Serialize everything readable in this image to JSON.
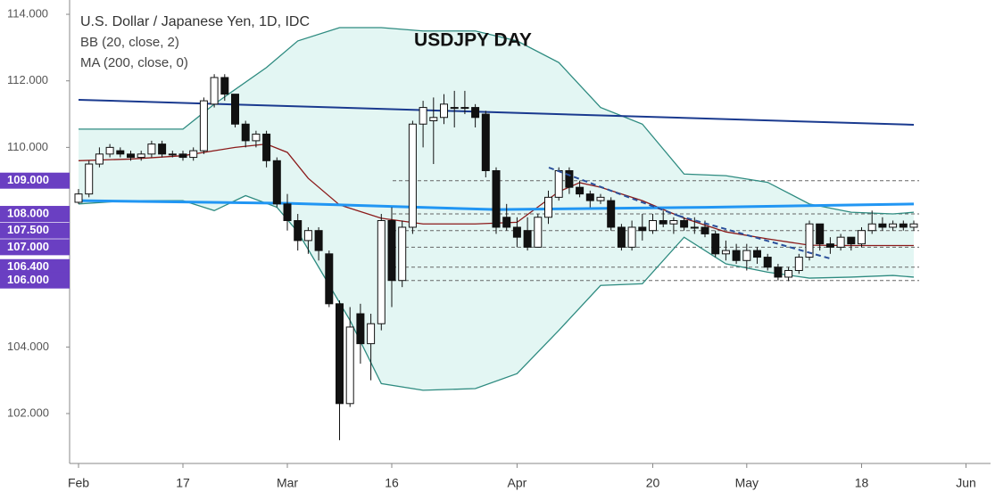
{
  "chart_data": {
    "type": "candlestick",
    "title": "USDJPY DAY",
    "legend_lines": [
      "U.S. Dollar / Japanese Yen, 1D, IDC",
      "BB (20, close, 2)",
      "MA (200, close, 0)"
    ],
    "open": [
      108.35,
      108.6,
      109.5,
      109.8,
      109.9,
      109.8,
      109.7,
      109.8,
      110.1,
      109.8,
      109.8,
      109.7,
      109.9,
      111.3,
      112.1,
      111.6,
      110.7,
      110.2,
      110.4,
      109.6,
      108.3,
      107.8,
      107.2,
      107.5,
      106.8,
      105.3,
      102.3,
      105.0,
      104.1,
      104.7,
      107.8,
      106.0,
      107.6,
      110.7,
      110.8,
      110.9,
      111.2,
      111.2,
      111.2,
      111.0,
      109.3,
      107.9,
      107.6,
      107.5,
      107.0,
      107.9,
      108.5,
      109.3,
      108.8,
      108.6,
      108.4,
      108.4,
      107.6,
      107.0,
      107.6,
      107.5,
      107.8,
      107.7,
      107.8,
      107.6,
      107.6,
      107.4,
      106.8,
      106.9,
      106.6,
      106.9,
      106.7,
      106.4,
      106.1,
      106.3,
      106.7,
      107.7,
      107.1,
      107.0,
      107.3,
      107.1,
      107.5,
      107.7,
      107.6,
      107.7,
      107.6
    ],
    "high": [
      108.75,
      109.6,
      110.0,
      110.1,
      110.0,
      109.9,
      109.9,
      110.2,
      110.2,
      109.9,
      109.9,
      110.0,
      111.5,
      112.2,
      112.2,
      111.6,
      110.8,
      110.5,
      110.5,
      109.7,
      108.6,
      108.0,
      107.6,
      107.6,
      106.9,
      105.4,
      105.2,
      105.3,
      105.0,
      108.0,
      108.2,
      107.8,
      110.8,
      111.4,
      111.5,
      111.6,
      111.7,
      111.7,
      111.3,
      111.1,
      109.4,
      108.3,
      107.9,
      107.9,
      108.0,
      108.7,
      109.4,
      109.4,
      109.0,
      108.7,
      108.6,
      108.5,
      107.7,
      107.8,
      108.0,
      108.0,
      108.1,
      107.9,
      107.9,
      107.9,
      107.8,
      107.5,
      107.2,
      107.1,
      107.1,
      107.0,
      106.8,
      106.5,
      106.4,
      106.8,
      107.8,
      107.7,
      107.3,
      107.4,
      107.3,
      107.6,
      108.1,
      107.9,
      107.8,
      107.8,
      107.8
    ],
    "low": [
      108.3,
      108.5,
      109.4,
      109.7,
      109.7,
      109.6,
      109.6,
      109.7,
      109.7,
      109.7,
      109.6,
      109.6,
      109.8,
      111.2,
      111.4,
      110.6,
      110.0,
      110.0,
      109.4,
      108.2,
      107.5,
      106.9,
      106.8,
      106.6,
      105.2,
      101.2,
      102.2,
      103.5,
      103.0,
      104.5,
      105.2,
      105.8,
      107.4,
      110.0,
      109.5,
      110.7,
      110.6,
      111.0,
      110.6,
      109.1,
      107.4,
      107.5,
      107.0,
      106.9,
      107.0,
      107.7,
      108.4,
      108.6,
      108.5,
      108.2,
      108.3,
      107.5,
      106.9,
      106.9,
      107.2,
      107.4,
      107.6,
      107.4,
      107.5,
      107.4,
      107.3,
      106.7,
      106.6,
      106.5,
      106.3,
      106.5,
      106.3,
      106.0,
      105.98,
      106.2,
      106.6,
      106.9,
      106.8,
      106.9,
      106.9,
      107.0,
      107.4,
      107.5,
      107.5,
      107.5,
      107.5
    ],
    "close": [
      108.6,
      109.5,
      109.8,
      110.0,
      109.8,
      109.7,
      109.8,
      110.1,
      109.8,
      109.8,
      109.7,
      109.9,
      111.4,
      112.1,
      111.6,
      110.7,
      110.2,
      110.4,
      109.6,
      108.3,
      107.8,
      107.2,
      107.5,
      106.9,
      105.3,
      102.3,
      104.6,
      104.1,
      104.7,
      107.8,
      106.0,
      107.6,
      110.7,
      111.2,
      110.9,
      111.3,
      111.2,
      111.2,
      110.9,
      109.3,
      107.6,
      107.6,
      107.3,
      107.0,
      107.9,
      108.5,
      109.3,
      108.8,
      108.6,
      108.4,
      108.5,
      107.6,
      107.0,
      107.6,
      107.5,
      107.8,
      107.7,
      107.8,
      107.6,
      107.6,
      107.4,
      106.8,
      106.9,
      106.6,
      106.9,
      106.7,
      106.4,
      106.1,
      106.3,
      106.7,
      107.7,
      107.1,
      107.0,
      107.3,
      107.1,
      107.5,
      107.7,
      107.6,
      107.7,
      107.6,
      107.7
    ],
    "series": [
      {
        "name": "BB upper",
        "color": "#2e8b80",
        "x": [
          0,
          5,
          10,
          13,
          18,
          21,
          25,
          29,
          33,
          38,
          42,
          46,
          50,
          54,
          58,
          62,
          66,
          70,
          74,
          78,
          80
        ],
        "values": [
          110.55,
          110.55,
          110.55,
          111.3,
          112.4,
          113.2,
          113.6,
          113.6,
          113.5,
          113.5,
          113.2,
          112.55,
          111.2,
          110.7,
          109.2,
          109.15,
          108.95,
          108.3,
          108.05,
          108.0,
          108.05
        ]
      },
      {
        "name": "BB lower",
        "color": "#2e8b80",
        "x": [
          0,
          5,
          10,
          13,
          16,
          19,
          21,
          23,
          26,
          29,
          33,
          38,
          42,
          46,
          50,
          54,
          58,
          62,
          66,
          70,
          74,
          78,
          80
        ],
        "values": [
          108.3,
          108.4,
          108.4,
          108.1,
          108.55,
          108.2,
          107.46,
          106.4,
          104.8,
          102.9,
          102.7,
          102.75,
          103.2,
          104.5,
          105.85,
          105.9,
          107.3,
          106.5,
          106.25,
          106.07,
          106.1,
          106.15,
          106.1
        ]
      },
      {
        "name": "BB basis",
        "color": "#8b1a1a",
        "x": [
          0,
          5,
          10,
          15,
          18,
          20,
          22,
          25,
          29,
          33,
          38,
          42,
          46,
          48,
          50,
          54,
          58,
          62,
          66,
          70,
          74,
          80
        ],
        "values": [
          109.6,
          109.65,
          109.75,
          110.0,
          110.1,
          109.85,
          109.07,
          108.27,
          107.87,
          107.7,
          107.7,
          107.75,
          108.67,
          108.94,
          108.8,
          108.4,
          107.87,
          107.46,
          107.25,
          107.06,
          107.05,
          107.05
        ]
      },
      {
        "name": "MA 200",
        "color": "#2196f3",
        "x": [
          0,
          20,
          40,
          60,
          80
        ],
        "values": [
          108.4,
          108.32,
          108.13,
          108.2,
          108.3
        ]
      },
      {
        "name": "Trend line",
        "color": "#1a3a8f",
        "x": [
          0,
          80
        ],
        "values": [
          111.43,
          110.68
        ]
      }
    ],
    "levels": [
      {
        "value": 109,
        "label": "109.000"
      },
      {
        "value": 108,
        "label": "108.000"
      },
      {
        "value": 107.5,
        "label": "107.500"
      },
      {
        "value": 107,
        "label": "107.000"
      },
      {
        "value": 106.4,
        "label": "106.400"
      },
      {
        "value": 106,
        "label": "106.000"
      }
    ],
    "xlim": [
      -0.855,
      87.35
    ],
    "xticks": [
      {
        "value": 0,
        "label": "Feb"
      },
      {
        "value": 10,
        "label": "17"
      },
      {
        "value": 20,
        "label": "Mar"
      },
      {
        "value": 30,
        "label": "16"
      },
      {
        "value": 42,
        "label": "Apr"
      },
      {
        "value": 55,
        "label": "20"
      },
      {
        "value": 64,
        "label": "May"
      },
      {
        "value": 75,
        "label": "18"
      },
      {
        "value": 85,
        "label": "Jun"
      }
    ],
    "ylim": [
      100.5,
      114.43
    ],
    "yticks": [
      {
        "value": 102,
        "label": "102.000"
      },
      {
        "value": 104,
        "label": "104.000"
      },
      {
        "value": 106,
        "label": "106.000"
      },
      {
        "value": 108,
        "label": "108.000"
      },
      {
        "value": 110,
        "label": "110.000"
      },
      {
        "value": 112,
        "label": "112.000"
      },
      {
        "value": 114,
        "label": "114.000"
      }
    ]
  }
}
